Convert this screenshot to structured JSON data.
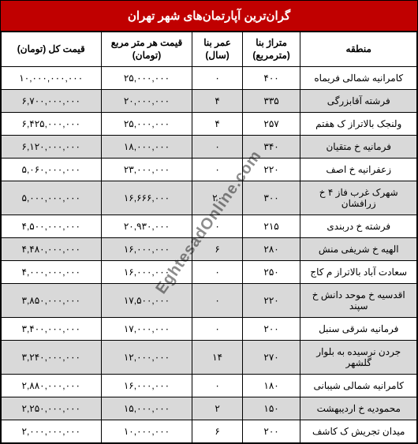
{
  "title": "گران‌ترین آپارتمان‌های شهر تهران",
  "watermark": "EghtesadOnline.com",
  "headers": {
    "region": "منطقه",
    "area": "متراژ بنا (مترمربع)",
    "age": "عمر بنا (سال)",
    "price_sqm": "قیمت هر متر مربع (تومان)",
    "price_total": "قیمت کل (تومان)"
  },
  "colors": {
    "title_bg": "#c00000",
    "title_text": "#ffffff",
    "row_odd_bg": "#ffffff",
    "row_even_bg": "#d9d9d9",
    "border": "#000000",
    "text": "#000000"
  },
  "rows": [
    {
      "region": "کامرانیه شمالی فریماه",
      "area": "۴۰۰",
      "age": "۰",
      "price_sqm": "۲۵,۰۰۰,۰۰۰",
      "price_total": "۱۰,۰۰۰,۰۰۰,۰۰۰"
    },
    {
      "region": "فرشته آقابزرگی",
      "area": "۳۳۵",
      "age": "۴",
      "price_sqm": "۲۰,۰۰۰,۰۰۰",
      "price_total": "۶,۷۰۰,۰۰۰,۰۰۰"
    },
    {
      "region": "ولنجک بالاتراز ک هفتم",
      "area": "۲۵۷",
      "age": "۴",
      "price_sqm": "۲۵,۰۰۰,۰۰۰",
      "price_total": "۶,۴۲۵,۰۰۰,۰۰۰"
    },
    {
      "region": "فرمانیه خ متقیان",
      "area": "۳۴۰",
      "age": "۰",
      "price_sqm": "۱۸,۰۰۰,۰۰۰",
      "price_total": "۶,۱۲۰,۰۰۰,۰۰۰"
    },
    {
      "region": "زعفرانیه خ اصف",
      "area": "۲۲۰",
      "age": "۰",
      "price_sqm": "۲۳,۰۰۰,۰۰۰",
      "price_total": "۵,۰۶۰,۰۰۰,۰۰۰"
    },
    {
      "region": "شهرک غرب فاز ۴ خ زرافشان",
      "area": "۳۰۰",
      "age": "۲۰",
      "price_sqm": "۱۶,۶۶۶,۰۰۰",
      "price_total": "۵,۰۰۰,۰۰۰,۰۰۰"
    },
    {
      "region": "فرشته خ دربندی",
      "area": "۲۱۵",
      "age": "۰",
      "price_sqm": "۲۰,۹۳۰,۰۰۰",
      "price_total": "۴,۵۰۰,۰۰۰,۰۰۰"
    },
    {
      "region": "الهیه خ شریفی منش",
      "area": "۲۸۰",
      "age": "۶",
      "price_sqm": "۱۶,۰۰۰,۰۰۰",
      "price_total": "۴,۴۸۰,۰۰۰,۰۰۰"
    },
    {
      "region": "سعادت آباد بالاتراز م کاج",
      "area": "۲۵۰",
      "age": "۰",
      "price_sqm": "۱۶,۰۰۰,۰۰۰",
      "price_total": "۴,۰۰۰,۰۰۰,۰۰۰"
    },
    {
      "region": "اقدسیه خ موحد دانش خ سپند",
      "area": "۲۲۰",
      "age": "۰",
      "price_sqm": "۱۷,۵۰۰,۰۰۰",
      "price_total": "۳,۸۵۰,۰۰۰,۰۰۰"
    },
    {
      "region": "فرمانیه شرقی سنبل",
      "area": "۲۰۰",
      "age": "۰",
      "price_sqm": "۱۷,۰۰۰,۰۰۰",
      "price_total": "۳,۴۰۰,۰۰۰,۰۰۰"
    },
    {
      "region": "جردن نرسیده به بلوار گلشهر",
      "area": "۲۷۰",
      "age": "۱۴",
      "price_sqm": "۱۲,۰۰۰,۰۰۰",
      "price_total": "۳,۲۴۰,۰۰۰,۰۰۰"
    },
    {
      "region": "کامرانیه شمالی شیبانی",
      "area": "۱۸۰",
      "age": "۰",
      "price_sqm": "۱۶,۰۰۰,۰۰۰",
      "price_total": "۲,۸۸۰,۰۰۰,۰۰۰"
    },
    {
      "region": "محمودیه خ اردیبهشت",
      "area": "۱۵۰",
      "age": "۲",
      "price_sqm": "۱۵,۰۰۰,۰۰۰",
      "price_total": "۲,۲۵۰,۰۰۰,۰۰۰"
    },
    {
      "region": "میدان تجریش ک کاشف",
      "area": "۲۰۰",
      "age": "۶",
      "price_sqm": "۱۰,۰۰۰,۰۰۰",
      "price_total": "۲,۰۰۰,۰۰۰,۰۰۰"
    }
  ]
}
